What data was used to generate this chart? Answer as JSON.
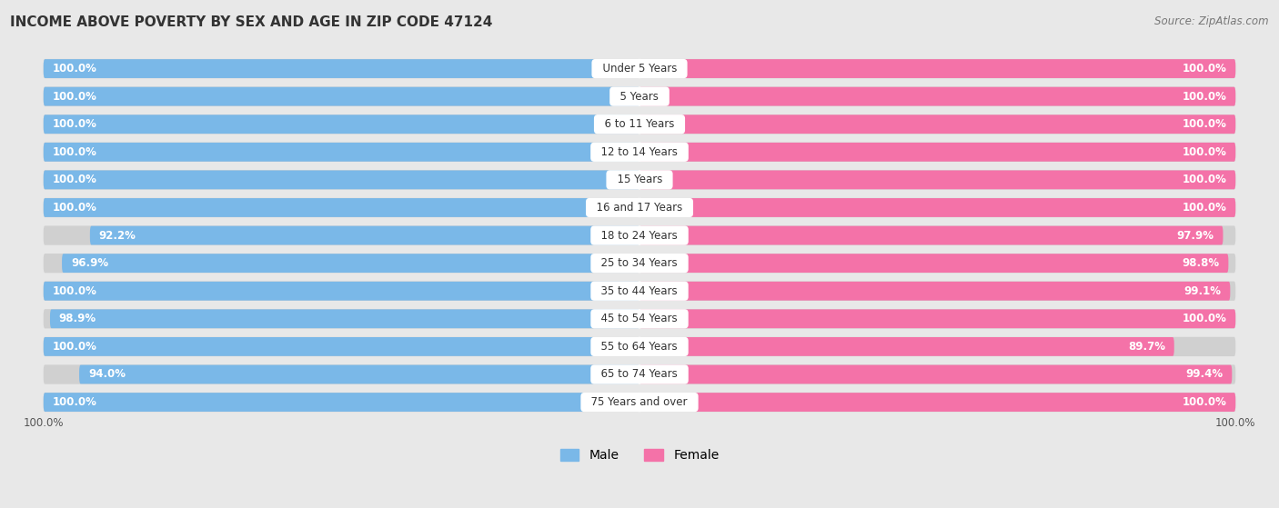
{
  "title": "INCOME ABOVE POVERTY BY SEX AND AGE IN ZIP CODE 47124",
  "source": "Source: ZipAtlas.com",
  "categories": [
    "Under 5 Years",
    "5 Years",
    "6 to 11 Years",
    "12 to 14 Years",
    "15 Years",
    "16 and 17 Years",
    "18 to 24 Years",
    "25 to 34 Years",
    "35 to 44 Years",
    "45 to 54 Years",
    "55 to 64 Years",
    "65 to 74 Years",
    "75 Years and over"
  ],
  "male_values": [
    100.0,
    100.0,
    100.0,
    100.0,
    100.0,
    100.0,
    92.2,
    96.9,
    100.0,
    98.9,
    100.0,
    94.0,
    100.0
  ],
  "female_values": [
    100.0,
    100.0,
    100.0,
    100.0,
    100.0,
    100.0,
    97.9,
    98.8,
    99.1,
    100.0,
    89.7,
    99.4,
    100.0
  ],
  "male_color": "#7ab8e8",
  "female_color": "#f472a8",
  "male_label": "Male",
  "female_label": "Female",
  "background_color": "#e8e8e8",
  "bar_bg_color": "#d8d8d8",
  "title_fontsize": 11,
  "label_fontsize": 8.5,
  "value_fontsize": 8.5,
  "legend_fontsize": 10,
  "source_fontsize": 8.5
}
